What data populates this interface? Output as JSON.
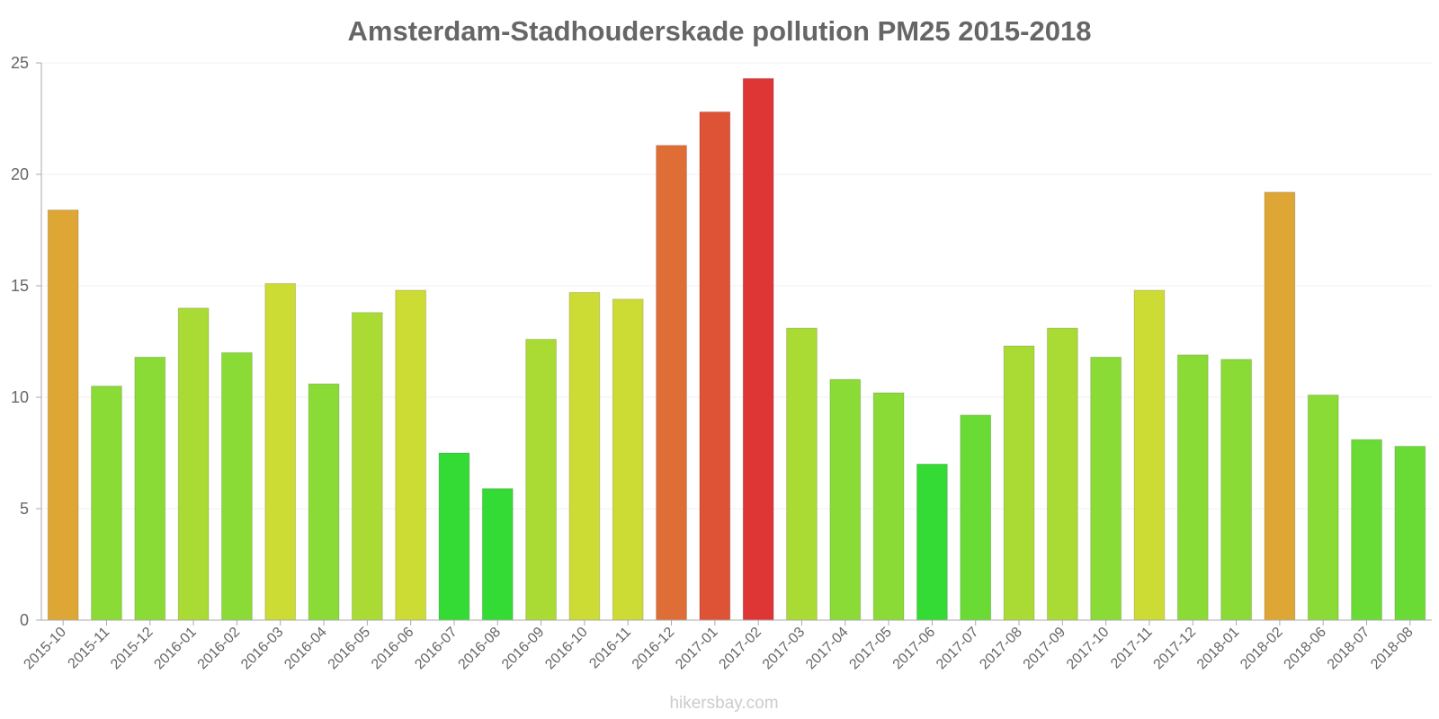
{
  "chart_data": {
    "type": "bar",
    "title": "Amsterdam-Stadhouderskade pollution PM25 2015-2018",
    "xlabel": "",
    "ylabel": "",
    "ylim": [
      0,
      25
    ],
    "yticks": [
      "0",
      "5",
      "10",
      "15",
      "20",
      "25"
    ],
    "grid": true,
    "categories": [
      "2015-10",
      "2015-11",
      "2015-12",
      "2016-01",
      "2016-02",
      "2016-03",
      "2016-04",
      "2016-05",
      "2016-06",
      "2016-07",
      "2016-08",
      "2016-09",
      "2016-10",
      "2016-11",
      "2016-12",
      "2017-01",
      "2017-02",
      "2017-03",
      "2017-04",
      "2017-05",
      "2017-06",
      "2017-07",
      "2017-08",
      "2017-09",
      "2017-10",
      "2017-11",
      "2017-12",
      "2018-01",
      "2018-02",
      "2018-06",
      "2018-07",
      "2018-08"
    ],
    "values": [
      18.4,
      10.5,
      11.8,
      14.0,
      12.0,
      15.1,
      10.6,
      13.8,
      14.8,
      7.5,
      5.9,
      12.6,
      14.7,
      14.4,
      21.3,
      22.8,
      24.3,
      13.1,
      10.8,
      10.2,
      7.0,
      9.2,
      12.3,
      13.1,
      11.8,
      14.8,
      11.9,
      11.7,
      19.2,
      10.1,
      8.1,
      7.8
    ],
    "colors": [
      "#dea635",
      "#8adb35",
      "#8adb35",
      "#aadb35",
      "#8adb35",
      "#cddb35",
      "#8adb35",
      "#aadb35",
      "#cddb35",
      "#35db35",
      "#35db35",
      "#aadb35",
      "#cddb35",
      "#cddb35",
      "#de6e35",
      "#de5235",
      "#de3535",
      "#aadb35",
      "#8adb35",
      "#8adb35",
      "#35db35",
      "#6adb35",
      "#aadb35",
      "#aadb35",
      "#8adb35",
      "#cddb35",
      "#8adb35",
      "#8adb35",
      "#dea635",
      "#8adb35",
      "#6adb35",
      "#6adb35"
    ]
  },
  "watermark": "hikersbay.com"
}
